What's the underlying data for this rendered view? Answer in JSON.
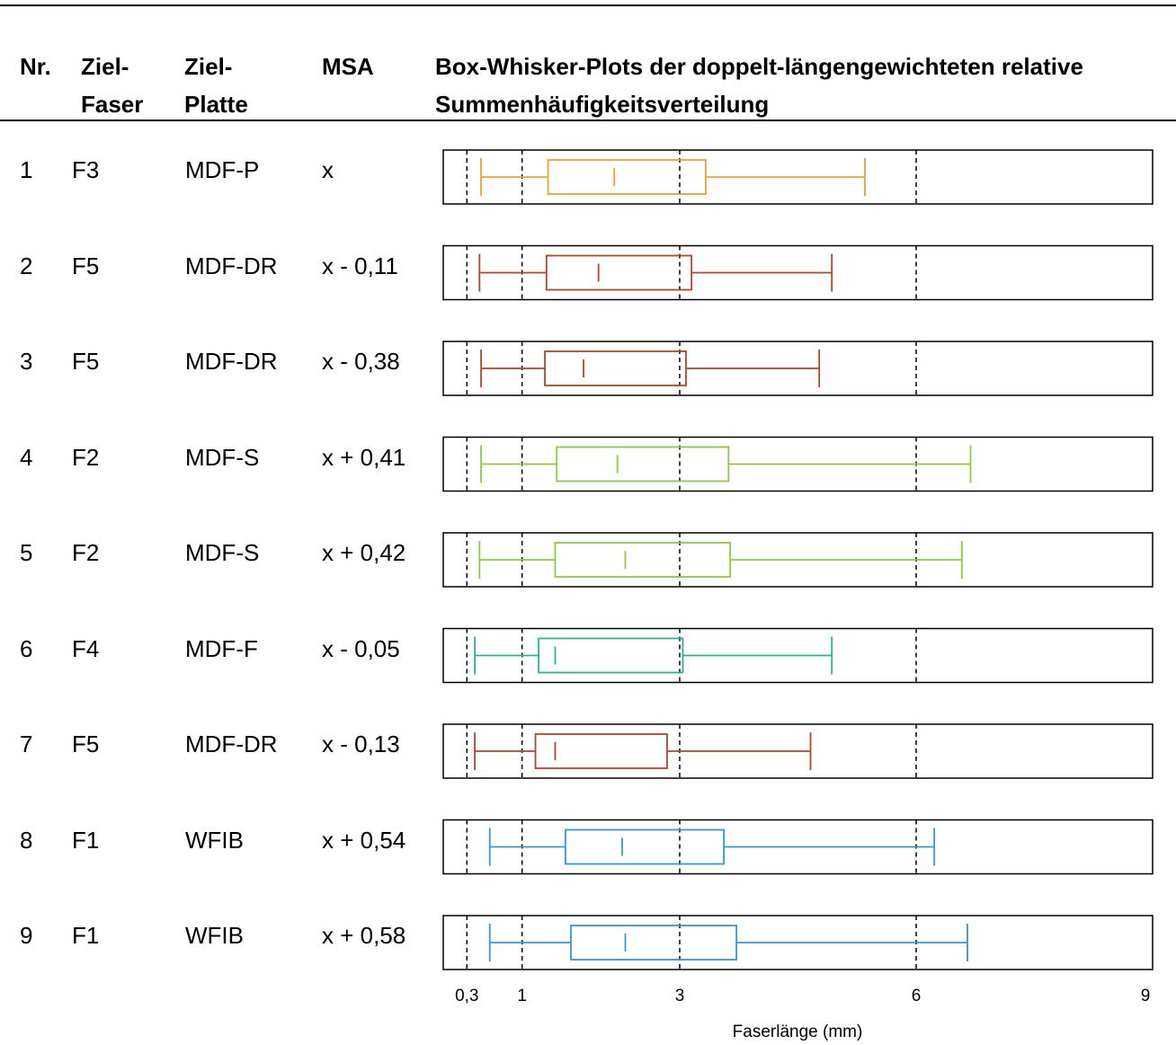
{
  "headers": {
    "nr": "Nr.",
    "faser": [
      "Ziel-",
      "Faser"
    ],
    "platte": [
      "Ziel-",
      "Platte"
    ],
    "msa": "MSA",
    "plot": [
      "Box-Whisker-Plots der doppelt-längengewichteten relative",
      "Summenhäufigkeitsverteilung"
    ]
  },
  "rows": [
    {
      "nr": "1",
      "faser": "F3",
      "platte": "MDF-P",
      "msa": "x"
    },
    {
      "nr": "2",
      "faser": "F5",
      "platte": "MDF-DR",
      "msa": "x - 0,11"
    },
    {
      "nr": "3",
      "faser": "F5",
      "platte": "MDF-DR",
      "msa": "x - 0,38"
    },
    {
      "nr": "4",
      "faser": "F2",
      "platte": "MDF-S",
      "msa": "x + 0,41"
    },
    {
      "nr": "5",
      "faser": "F2",
      "platte": "MDF-S",
      "msa": "x + 0,42"
    },
    {
      "nr": "6",
      "faser": "F4",
      "platte": "MDF-F",
      "msa": "x - 0,05"
    },
    {
      "nr": "7",
      "faser": "F5",
      "platte": "MDF-DR",
      "msa": "x - 0,13"
    },
    {
      "nr": "8",
      "faser": "F1",
      "platte": "WFIB",
      "msa": "x + 0,54"
    },
    {
      "nr": "9",
      "faser": "F1",
      "platte": "WFIB",
      "msa": "x + 0,58"
    }
  ],
  "chart_data": {
    "type": "boxplot",
    "xlabel": "Faserlänge (mm)",
    "xlim": [
      0,
      9
    ],
    "x_ticks": [
      0.3,
      1,
      3,
      6,
      9
    ],
    "x_tick_labels": [
      "0,3",
      "1",
      "3",
      "6",
      "9"
    ],
    "reference_lines": [
      0.3,
      1,
      3,
      6
    ],
    "grid": false,
    "colors": {
      "F3": "#F0A030",
      "F5": "#B5432A",
      "F2": "#8CCB3C",
      "F4": "#26B39A",
      "F1": "#2E9AD8"
    },
    "boxes": [
      {
        "row": "1",
        "fiber": "F3",
        "whisker_low": 0.48,
        "q1": 1.33,
        "median": 2.17,
        "q3": 3.33,
        "whisker_high": 5.35
      },
      {
        "row": "2",
        "fiber": "F5",
        "whisker_low": 0.46,
        "q1": 1.31,
        "median": 1.97,
        "q3": 3.15,
        "whisker_high": 4.93
      },
      {
        "row": "3",
        "fiber": "F5",
        "whisker_low": 0.48,
        "q1": 1.29,
        "median": 1.78,
        "q3": 3.08,
        "whisker_high": 4.77
      },
      {
        "row": "4",
        "fiber": "F2",
        "whisker_low": 0.48,
        "q1": 1.44,
        "median": 2.21,
        "q3": 3.62,
        "whisker_high": 6.69
      },
      {
        "row": "5",
        "fiber": "F2",
        "whisker_low": 0.46,
        "q1": 1.42,
        "median": 2.31,
        "q3": 3.64,
        "whisker_high": 6.58
      },
      {
        "row": "6",
        "fiber": "F4",
        "whisker_low": 0.4,
        "q1": 1.21,
        "median": 1.42,
        "q3": 3.04,
        "whisker_high": 4.93
      },
      {
        "row": "7",
        "fiber": "F5",
        "whisker_low": 0.4,
        "q1": 1.17,
        "median": 1.42,
        "q3": 2.84,
        "whisker_high": 4.66
      },
      {
        "row": "8",
        "fiber": "F1",
        "whisker_low": 0.59,
        "q1": 1.55,
        "median": 2.27,
        "q3": 3.56,
        "whisker_high": 6.23
      },
      {
        "row": "9",
        "fiber": "F1",
        "whisker_low": 0.59,
        "q1": 1.62,
        "median": 2.31,
        "q3": 3.72,
        "whisker_high": 6.65
      }
    ]
  }
}
